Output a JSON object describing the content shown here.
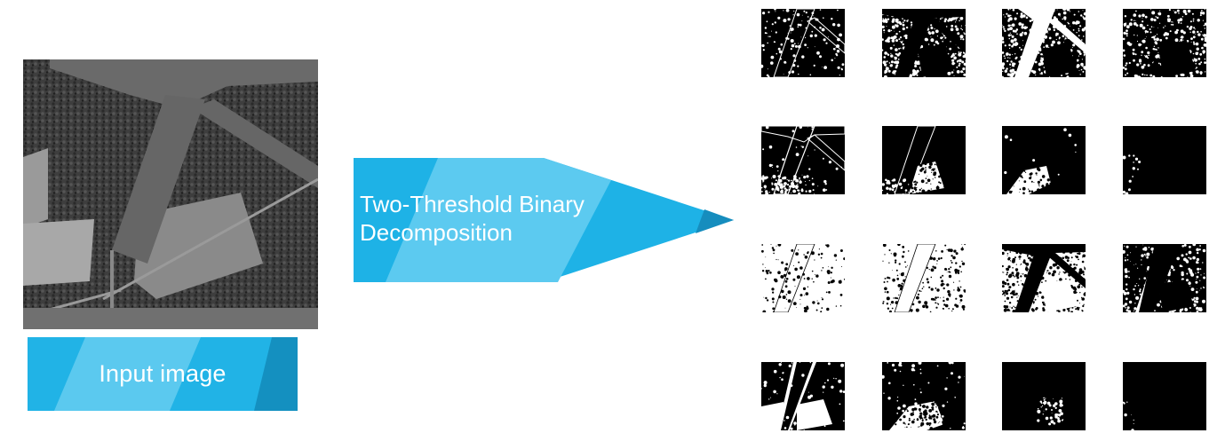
{
  "input": {
    "label": "Input image"
  },
  "process": {
    "line1": "Two-Threshold Binary",
    "line2": "Decomposition"
  },
  "colors": {
    "banner_dark": "#21B3E6",
    "banner_light": "#5BC9EF",
    "banner_deep": "#1490C0",
    "arrow_main": "#1EB2E6",
    "arrow_light": "#5CCAF0",
    "arrow_tip": "#168DBE"
  },
  "outputs": {
    "rows": 4,
    "cols": 4,
    "tiles": [
      {
        "variant": "edges-sparse"
      },
      {
        "variant": "texture-dense"
      },
      {
        "variant": "road-white"
      },
      {
        "variant": "texture-mid"
      },
      {
        "variant": "edges-outline"
      },
      {
        "variant": "dark-blobs"
      },
      {
        "variant": "dark-small"
      },
      {
        "variant": "almost-black"
      },
      {
        "variant": "white-sparse"
      },
      {
        "variant": "white-speckle"
      },
      {
        "variant": "mixed-road"
      },
      {
        "variant": "dark-road-white"
      },
      {
        "variant": "black-field-white"
      },
      {
        "variant": "black-dots"
      },
      {
        "variant": "black-small"
      },
      {
        "variant": "black-minimal"
      }
    ]
  }
}
